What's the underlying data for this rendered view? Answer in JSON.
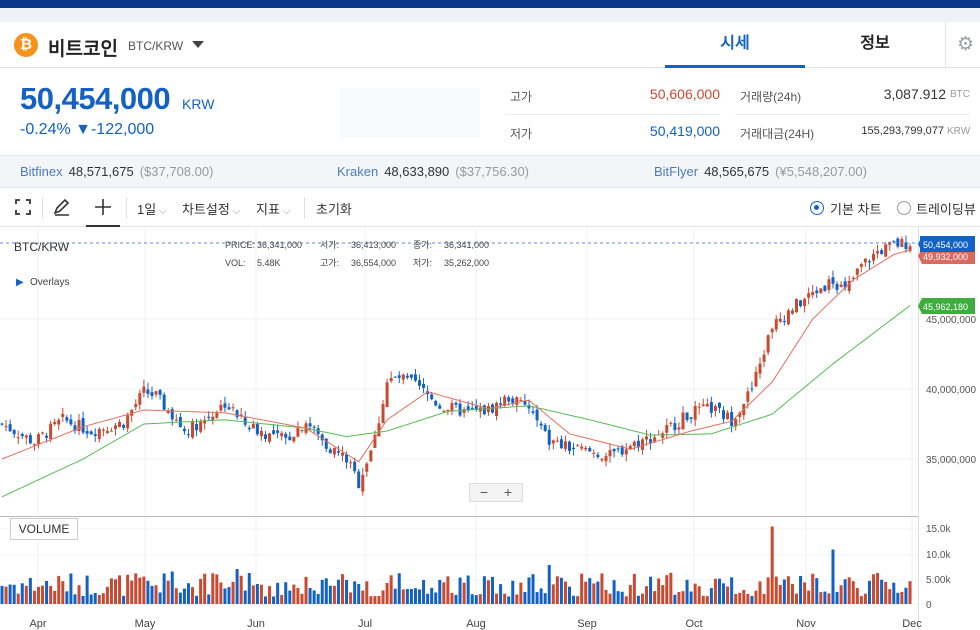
{
  "header": {
    "coin_symbol": "₿",
    "coin_name": "비트코인",
    "pair": "BTC/KRW",
    "tabs": [
      {
        "label": "시세"
      },
      {
        "label": "정보"
      }
    ],
    "settings_icon": "gear-icon"
  },
  "ticker": {
    "price": "50,454,000",
    "unit": "KRW",
    "change": "-0.24% ▼-122,000",
    "high_label": "고가",
    "high_value": "50,606,000",
    "low_label": "저가",
    "low_value": "50,419,000",
    "volume_label": "거래량(24h)",
    "volume_value": "3,087.912",
    "volume_unit": "BTC",
    "amount_label": "거래대금(24H)",
    "amount_value": "155,293,799,077",
    "amount_unit": "KRW"
  },
  "exchanges": [
    {
      "name": "Bitfinex",
      "price": "48,571,675",
      "foreign": "($37,708.00)"
    },
    {
      "name": "Kraken",
      "price": "48,633,890",
      "foreign": "($37,756.30)"
    },
    {
      "name": "BitFlyer",
      "price": "48,565,675",
      "foreign": "(¥5,548,207.00)"
    }
  ],
  "toolbar": {
    "interval": "1일",
    "chart_settings": "차트설정",
    "indicators": "지표",
    "reset": "초기화",
    "basic_chart": "기본 차트",
    "tradingview": "트레이딩뷰"
  },
  "chart_info": {
    "pair": "BTC/KRW",
    "overlays": "Overlays",
    "price_label": "PRICE:",
    "price_value": "36,341,000",
    "open_label": "시가:",
    "open_value": "36,413,000",
    "close_label": "종가:",
    "close_value": "36,341,000",
    "vol_label": "VOL:",
    "vol_value": "5.48K",
    "high_label": "고가:",
    "high_value": "36,554,000",
    "low_label": "저가:",
    "low_value": "35,262,000",
    "volume_panel": "VOLUME",
    "zoom_out": "−",
    "zoom_in": "+",
    "current_price_tag": "50,454,000",
    "ma_tag": "45,962,180",
    "ma_tag_partial": "49,932,000"
  },
  "chart_data": {
    "type": "candlestick",
    "x_labels": [
      "Apr",
      "May",
      "Jun",
      "Jul",
      "Aug",
      "Sep",
      "Oct",
      "Nov",
      "Dec"
    ],
    "y_labels": [
      "35,000,000",
      "40,000,000",
      "45,000,000"
    ],
    "volume_labels": [
      "15.0k",
      "10.0k",
      "5.00k",
      "0"
    ],
    "ylim": [
      32000000,
      52000000
    ],
    "close_path": [
      [
        0,
        37500000
      ],
      [
        8,
        36200000
      ],
      [
        15,
        37800000
      ],
      [
        22,
        37000000
      ],
      [
        30,
        37600000
      ],
      [
        35,
        39800000
      ],
      [
        38,
        39500000
      ],
      [
        45,
        37000000
      ],
      [
        50,
        37800000
      ],
      [
        55,
        39000000
      ],
      [
        60,
        37500000
      ],
      [
        65,
        36800000
      ],
      [
        70,
        36400000
      ],
      [
        75,
        37700000
      ],
      [
        80,
        36000000
      ],
      [
        85,
        35000000
      ],
      [
        88,
        33300000
      ],
      [
        92,
        36500000
      ],
      [
        95,
        40500000
      ],
      [
        98,
        40800000
      ],
      [
        102,
        40300000
      ],
      [
        108,
        38800000
      ],
      [
        115,
        38300000
      ],
      [
        120,
        38500000
      ],
      [
        125,
        39400000
      ],
      [
        130,
        38600000
      ],
      [
        135,
        36200000
      ],
      [
        140,
        35800000
      ],
      [
        145,
        35500000
      ],
      [
        150,
        35200000
      ],
      [
        155,
        36000000
      ],
      [
        160,
        36500000
      ],
      [
        165,
        37300000
      ],
      [
        170,
        38300000
      ],
      [
        175,
        38600000
      ],
      [
        180,
        37800000
      ],
      [
        185,
        40000000
      ],
      [
        190,
        44500000
      ],
      [
        195,
        45800000
      ],
      [
        200,
        46800000
      ],
      [
        205,
        47800000
      ],
      [
        208,
        47000000
      ],
      [
        212,
        48800000
      ],
      [
        216,
        49800000
      ],
      [
        220,
        50300000
      ],
      [
        224,
        50454000
      ]
    ],
    "ma_short": [
      [
        0,
        35000000
      ],
      [
        20,
        37300000
      ],
      [
        35,
        38500000
      ],
      [
        55,
        38300000
      ],
      [
        75,
        37200000
      ],
      [
        88,
        34800000
      ],
      [
        95,
        37800000
      ],
      [
        105,
        39800000
      ],
      [
        120,
        38600000
      ],
      [
        130,
        39200000
      ],
      [
        140,
        36800000
      ],
      [
        155,
        35700000
      ],
      [
        170,
        37000000
      ],
      [
        180,
        37700000
      ],
      [
        190,
        40500000
      ],
      [
        200,
        45000000
      ],
      [
        210,
        47800000
      ],
      [
        220,
        49600000
      ],
      [
        224,
        49932000
      ]
    ],
    "ma_long": [
      [
        0,
        32300000
      ],
      [
        20,
        35000000
      ],
      [
        35,
        37500000
      ],
      [
        55,
        37800000
      ],
      [
        75,
        37200000
      ],
      [
        85,
        36600000
      ],
      [
        95,
        37000000
      ],
      [
        110,
        38400000
      ],
      [
        130,
        38800000
      ],
      [
        145,
        37800000
      ],
      [
        160,
        36700000
      ],
      [
        175,
        36800000
      ],
      [
        190,
        38200000
      ],
      [
        205,
        41800000
      ],
      [
        224,
        45962180
      ]
    ],
    "volume_peaks": [
      {
        "i": 42,
        "v": 6500
      },
      {
        "i": 58,
        "v": 7000
      },
      {
        "i": 135,
        "v": 7800
      },
      {
        "i": 190,
        "v": 15500
      },
      {
        "i": 205,
        "v": 10900
      }
    ],
    "colors": {
      "up": "#c84a31",
      "down": "#1261c4",
      "ma_short": "#e07060",
      "ma_long": "#55bb55"
    }
  }
}
